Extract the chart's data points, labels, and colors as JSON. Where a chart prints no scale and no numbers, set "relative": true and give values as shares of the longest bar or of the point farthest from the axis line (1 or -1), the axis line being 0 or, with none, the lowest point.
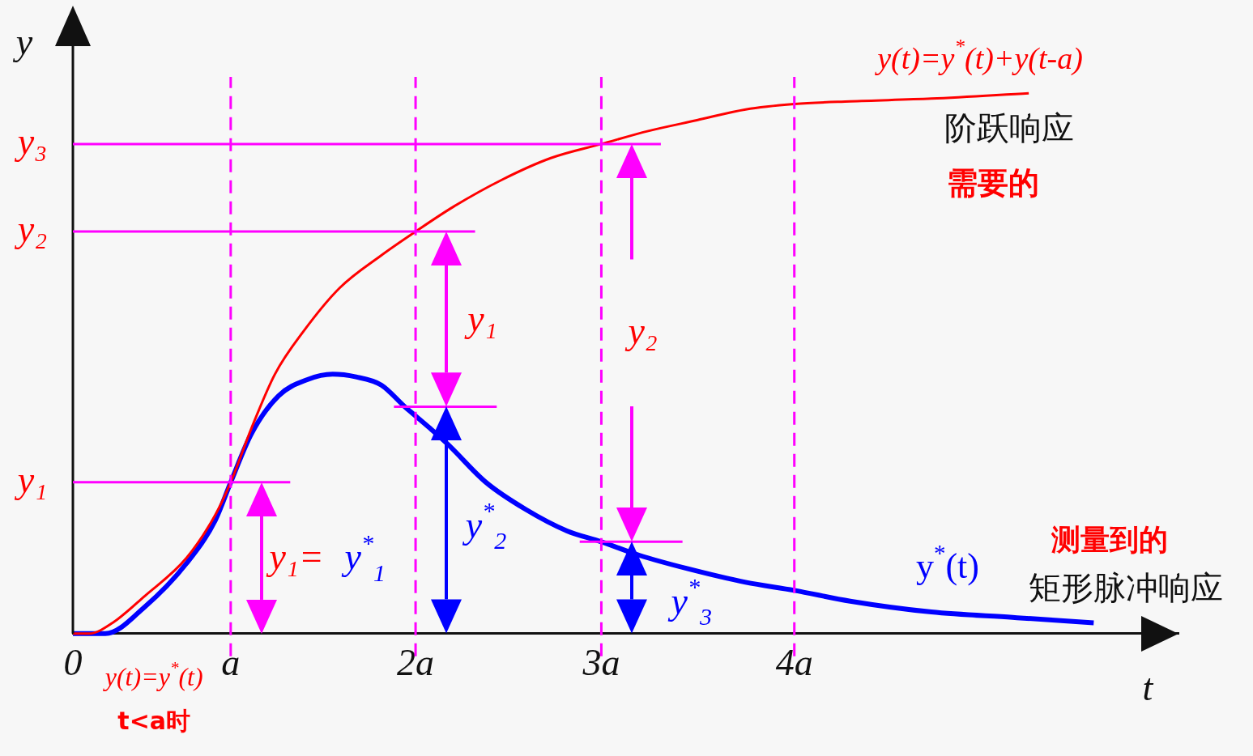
{
  "chart_data": {
    "type": "line",
    "xlabel": "t",
    "ylabel": "y",
    "relative": true,
    "xlim": [
      0,
      6.13
    ],
    "xticks": [
      {
        "value": 0,
        "label": "0"
      },
      {
        "value": 0.875,
        "label": "a"
      },
      {
        "value": 1.9,
        "label": "2a"
      },
      {
        "value": 2.93,
        "label": "3a"
      },
      {
        "value": 4.0,
        "label": "4a"
      }
    ],
    "series": [
      {
        "color": "#ff0000",
        "x": [
          0,
          0.09,
          0.22,
          0.4,
          0.63,
          0.79,
          0.875,
          0.99,
          1.12,
          1.28,
          1.48,
          1.71,
          1.9,
          2.11,
          2.38,
          2.65,
          2.93,
          3.19,
          3.46,
          3.73,
          4.0,
          4.31,
          4.76,
          5.3
        ],
        "values": [
          0,
          0,
          0.02,
          0.07,
          0.14,
          0.22,
          0.28,
          0.38,
          0.48,
          0.56,
          0.64,
          0.7,
          0.744,
          0.79,
          0.84,
          0.88,
          0.906,
          0.93,
          0.95,
          0.97,
          0.98,
          0.985,
          0.99,
          1.0
        ]
      },
      {
        "color": "#0000ff",
        "x": [
          0,
          0.18,
          0.4,
          0.63,
          0.79,
          0.875,
          0.99,
          1.14,
          1.3,
          1.44,
          1.57,
          1.71,
          1.84,
          1.98,
          2.08,
          2.29,
          2.51,
          2.74,
          2.93,
          3.14,
          3.41,
          3.73,
          4.0,
          4.31,
          4.76,
          5.21,
          5.66
        ],
        "values": [
          0,
          0,
          0.05,
          0.13,
          0.21,
          0.28,
          0.37,
          0.44,
          0.47,
          0.48,
          0.475,
          0.46,
          0.42,
          0.38,
          0.35,
          0.28,
          0.23,
          0.19,
          0.17,
          0.145,
          0.12,
          0.095,
          0.08,
          0.06,
          0.04,
          0.03,
          0.02
        ]
      }
    ],
    "ref_lines": [
      {
        "axis": "x",
        "value": 0.875,
        "color": "#ff00ff",
        "line_style": "dashed"
      },
      {
        "axis": "x",
        "value": 1.9,
        "color": "#ff00ff",
        "line_style": "dashed"
      },
      {
        "axis": "x",
        "value": 2.93,
        "color": "#ff00ff",
        "line_style": "dashed"
      },
      {
        "axis": "x",
        "value": 4.0,
        "color": "#ff00ff",
        "line_style": "dashed"
      },
      {
        "axis": "y",
        "value": 0.28,
        "label": "y₁",
        "color": "#ff00ff"
      },
      {
        "axis": "y",
        "value": 0.744,
        "label": "y₂",
        "color": "#ff00ff"
      },
      {
        "axis": "y",
        "value": 0.906,
        "label": "y₃",
        "color": "#ff00ff"
      },
      {
        "axis": "y",
        "value": 0.42,
        "color": "#ff00ff"
      },
      {
        "axis": "y",
        "value": 0.17,
        "color": "#ff00ff"
      }
    ],
    "annotations": [
      "y(t)=y$^{*}$(t)+y(t-a)",
      "阶跃响应",
      "需要的",
      "测量到的",
      "y$^{*}$(t)",
      "矩形脉冲响应",
      "y(t)=y$^{*}$(t)",
      "t<a时",
      "y₁=",
      "y$^{*}$$_{1}$",
      "y₁",
      "y₂",
      "y$^{*}$$_{2}$",
      "y$^{*}$$_{3}$"
    ]
  }
}
